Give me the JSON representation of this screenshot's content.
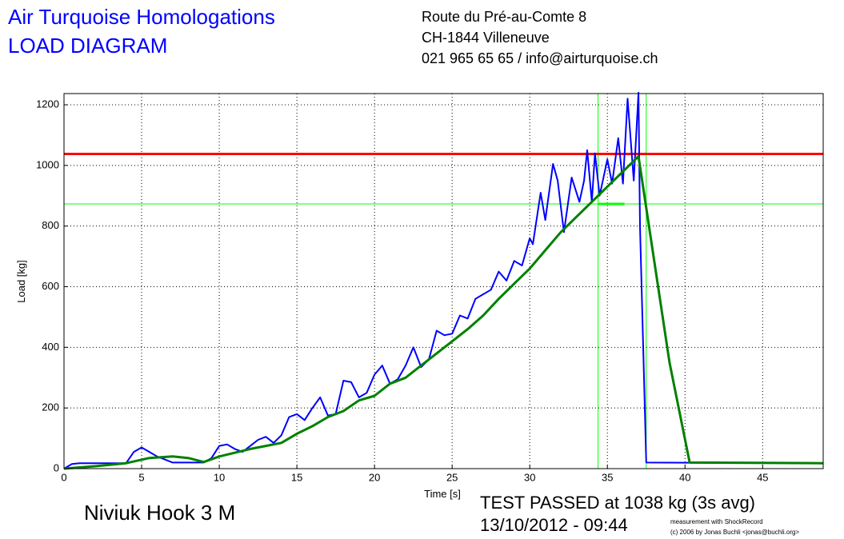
{
  "header": {
    "title": "Air Turquoise Homologations",
    "subtitle": "LOAD DIAGRAM",
    "address": [
      "Route du Pré-au-Comte 8",
      "CH-1844 Villeneuve",
      "021 965 65 65 / info@airturquoise.ch"
    ]
  },
  "footer": {
    "product": "Niviuk Hook 3 M",
    "result": "TEST PASSED at 1038 kg (3s avg)",
    "date": "13/10/2012 - 09:44",
    "credit": [
      "measurement with ShockRecord",
      "(c) 2006 by Jonas Buchli <jonas@buchli.org>"
    ]
  },
  "chart_data": {
    "type": "line",
    "xlabel": "Time [s]",
    "ylabel": "Load [kg]",
    "xlim": [
      0,
      48.9
    ],
    "ylim": [
      0,
      1237
    ],
    "xticks": [
      0,
      5,
      10,
      15,
      20,
      25,
      30,
      35,
      40,
      45
    ],
    "yticks": [
      0,
      200,
      400,
      600,
      800,
      1000,
      1200
    ],
    "grid": true,
    "series": [
      {
        "color": "#0000ff",
        "width": 2,
        "x": [
          0,
          0.5,
          1,
          4,
          4.5,
          5,
          5.5,
          6,
          6.5,
          7,
          9,
          9.5,
          10,
          10.5,
          11,
          11.5,
          12,
          12.5,
          13,
          13.5,
          14,
          14.5,
          15,
          15.5,
          16,
          16.5,
          17,
          17.5,
          18,
          18.5,
          19,
          19.5,
          20,
          20.5,
          21,
          21.5,
          22,
          22.5,
          23,
          23.5,
          24,
          24.5,
          25,
          25.5,
          26,
          26.5,
          27,
          27.5,
          28,
          28.5,
          29,
          29.5,
          30,
          30.2,
          30.7,
          31,
          31.5,
          31.8,
          32.2,
          32.7,
          33.2,
          33.5,
          33.7,
          34,
          34.2,
          34.5,
          35,
          35.3,
          35.7,
          36,
          36.3,
          36.7,
          37,
          37.1,
          37.5,
          48.9
        ],
        "values": [
          0,
          15,
          18,
          18,
          55,
          70,
          55,
          40,
          30,
          20,
          20,
          35,
          75,
          80,
          65,
          55,
          75,
          95,
          105,
          85,
          110,
          170,
          180,
          160,
          200,
          235,
          175,
          180,
          290,
          285,
          235,
          250,
          310,
          340,
          280,
          295,
          340,
          400,
          335,
          360,
          455,
          440,
          445,
          505,
          495,
          560,
          575,
          590,
          650,
          620,
          685,
          670,
          760,
          740,
          910,
          820,
          1005,
          950,
          780,
          960,
          880,
          950,
          1050,
          880,
          1040,
          900,
          1020,
          940,
          1090,
          940,
          1220,
          950,
          1240,
          800,
          20,
          18
        ]
      },
      {
        "color": "#008000",
        "width": 3,
        "x": [
          0,
          2,
          4,
          5.5,
          7,
          8,
          9,
          10,
          12,
          13,
          14,
          15,
          16,
          17,
          18,
          19,
          20,
          21,
          22,
          23,
          24,
          25,
          26,
          27,
          28,
          29,
          30,
          31,
          32,
          33,
          34,
          35,
          36,
          37,
          38,
          39,
          40.3,
          48.9
        ],
        "values": [
          0,
          8,
          18,
          35,
          40,
          35,
          22,
          40,
          65,
          75,
          85,
          115,
          140,
          170,
          190,
          225,
          240,
          280,
          300,
          340,
          380,
          420,
          460,
          505,
          560,
          610,
          660,
          720,
          780,
          830,
          880,
          930,
          980,
          1030,
          690,
          350,
          20,
          18
        ]
      }
    ],
    "hlines": [
      {
        "value": 1038,
        "color": "#ff0000",
        "width": 3
      },
      {
        "value": 873,
        "color": "#00ff00",
        "width": 1
      }
    ],
    "vlines": [
      {
        "value": 34.4,
        "color": "#00ff00"
      },
      {
        "value": 37.5,
        "color": "#00ff00"
      }
    ],
    "segment": {
      "x": [
        34.4,
        36.1
      ],
      "y": 873,
      "color": "#00ff00"
    }
  }
}
